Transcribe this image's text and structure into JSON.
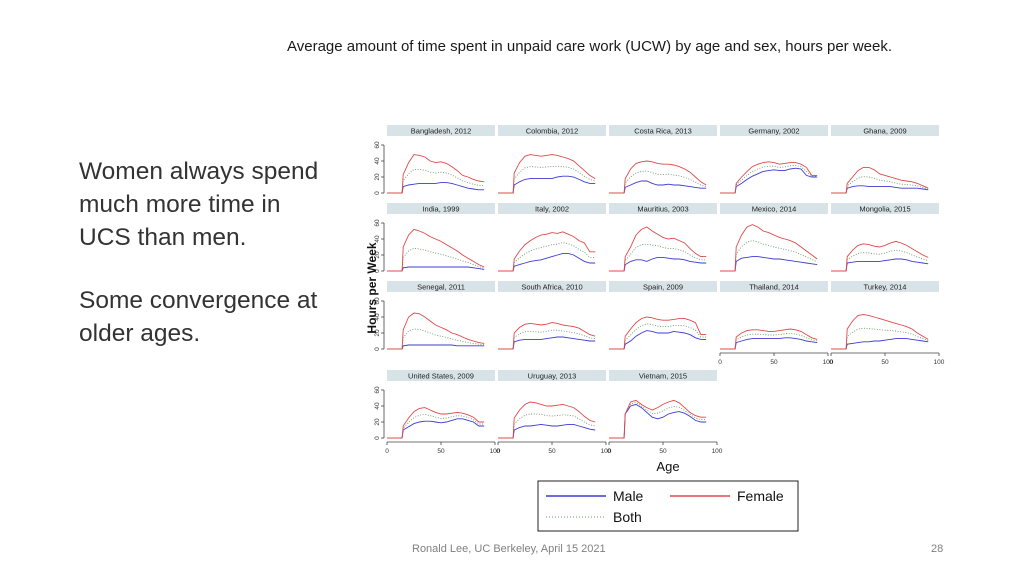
{
  "slide": {
    "title": "Average amount of time spent in unpaid care work (UCW) by age and sex, hours per week.",
    "bullets": [
      "Women always spend much more time in UCS than men.",
      "Some convergence at older ages."
    ],
    "footer": "Ronald Lee, UC Berkeley, April 15 2021",
    "page_number": "28"
  },
  "colors": {
    "male": "#3c3cd0",
    "female": "#e04848",
    "both": "#6a9a6a",
    "panel_header": "#d8e3e8",
    "axis": "#444444"
  },
  "chart_data": {
    "type": "line",
    "xlabel": "Age",
    "ylabel": "Hours per Week",
    "xlim": [
      0,
      100
    ],
    "ylim": [
      0,
      60
    ],
    "xticks": [
      0,
      50,
      100
    ],
    "yticks": [
      0,
      20,
      40,
      60
    ],
    "legend": {
      "placement": "bottom-center",
      "entries": [
        {
          "key": "male",
          "label": "Male"
        },
        {
          "key": "female",
          "label": "Female"
        },
        {
          "key": "both",
          "label": "Both"
        }
      ]
    },
    "ages": [
      0,
      14,
      15,
      20,
      25,
      30,
      35,
      40,
      45,
      50,
      55,
      60,
      65,
      70,
      75,
      80,
      85,
      90
    ],
    "panels": [
      {
        "name": "Bangladesh, 2012",
        "row": 0,
        "col": 0,
        "female": [
          0,
          0,
          23,
          38,
          48,
          47,
          45,
          40,
          38,
          39,
          37,
          33,
          28,
          22,
          20,
          17,
          15,
          14
        ],
        "male": [
          0,
          0,
          8,
          10,
          11,
          12,
          12,
          12,
          12,
          13,
          13,
          12,
          10,
          8,
          6,
          5,
          4,
          4
        ]
      },
      {
        "name": "Colombia, 2012",
        "row": 0,
        "col": 1,
        "female": [
          0,
          0,
          25,
          38,
          46,
          48,
          47,
          46,
          47,
          48,
          47,
          45,
          43,
          40,
          34,
          28,
          22,
          18
        ],
        "male": [
          0,
          0,
          10,
          14,
          17,
          18,
          18,
          18,
          18,
          18,
          20,
          21,
          21,
          20,
          17,
          14,
          12,
          12
        ]
      },
      {
        "name": "Costa Rica, 2013",
        "row": 0,
        "col": 2,
        "female": [
          0,
          0,
          18,
          30,
          37,
          39,
          40,
          39,
          37,
          36,
          36,
          35,
          33,
          30,
          26,
          20,
          14,
          10
        ],
        "male": [
          0,
          0,
          7,
          10,
          13,
          15,
          15,
          12,
          10,
          10,
          11,
          10,
          10,
          9,
          8,
          7,
          6,
          6
        ]
      },
      {
        "name": "Germany, 2002",
        "row": 0,
        "col": 3,
        "female": [
          0,
          0,
          12,
          20,
          27,
          33,
          36,
          38,
          39,
          38,
          36,
          37,
          38,
          38,
          36,
          32,
          22,
          22
        ],
        "male": [
          0,
          0,
          8,
          12,
          17,
          21,
          24,
          27,
          28,
          29,
          28,
          28,
          30,
          31,
          30,
          22,
          20,
          20
        ]
      },
      {
        "name": "Ghana, 2009",
        "row": 0,
        "col": 4,
        "female": [
          0,
          0,
          12,
          20,
          28,
          32,
          32,
          29,
          24,
          22,
          20,
          18,
          16,
          15,
          14,
          12,
          9,
          6
        ],
        "male": [
          0,
          0,
          6,
          8,
          9,
          9,
          8,
          8,
          8,
          8,
          8,
          7,
          6,
          6,
          6,
          6,
          5,
          4
        ]
      },
      {
        "name": "India, 1999",
        "row": 1,
        "col": 0,
        "female": [
          0,
          0,
          30,
          45,
          52,
          50,
          47,
          43,
          40,
          37,
          33,
          29,
          25,
          20,
          16,
          12,
          8,
          5
        ],
        "male": [
          0,
          0,
          4,
          5,
          5,
          5,
          5,
          5,
          5,
          5,
          5,
          5,
          5,
          5,
          5,
          4,
          3,
          2
        ]
      },
      {
        "name": "Italy, 2002",
        "row": 1,
        "col": 1,
        "female": [
          0,
          0,
          15,
          25,
          33,
          38,
          42,
          45,
          46,
          48,
          47,
          49,
          46,
          43,
          38,
          35,
          24,
          24
        ],
        "male": [
          0,
          0,
          6,
          8,
          10,
          12,
          13,
          14,
          16,
          18,
          20,
          22,
          22,
          20,
          16,
          12,
          10,
          10
        ]
      },
      {
        "name": "Mauritius, 2003",
        "row": 1,
        "col": 2,
        "female": [
          0,
          0,
          18,
          30,
          45,
          52,
          55,
          50,
          46,
          42,
          40,
          41,
          38,
          35,
          28,
          22,
          18,
          18
        ],
        "male": [
          0,
          0,
          8,
          12,
          14,
          14,
          12,
          15,
          17,
          17,
          16,
          15,
          15,
          14,
          12,
          11,
          10,
          10
        ]
      },
      {
        "name": "Mexico, 2014",
        "row": 1,
        "col": 3,
        "female": [
          0,
          0,
          30,
          45,
          55,
          58,
          55,
          50,
          48,
          45,
          42,
          40,
          38,
          35,
          30,
          25,
          20,
          15
        ],
        "male": [
          0,
          0,
          12,
          16,
          17,
          18,
          18,
          17,
          16,
          15,
          15,
          14,
          13,
          12,
          11,
          10,
          9,
          8
        ]
      },
      {
        "name": "Mongolia, 2015",
        "row": 1,
        "col": 4,
        "female": [
          0,
          0,
          18,
          26,
          32,
          34,
          33,
          31,
          30,
          32,
          35,
          37,
          35,
          32,
          28,
          24,
          20,
          17
        ],
        "male": [
          0,
          0,
          10,
          11,
          12,
          12,
          12,
          12,
          12,
          13,
          14,
          15,
          15,
          14,
          12,
          11,
          10,
          9
        ]
      },
      {
        "name": "Senegal, 2011",
        "row": 2,
        "col": 0,
        "female": [
          0,
          0,
          24,
          40,
          45,
          44,
          40,
          35,
          30,
          27,
          24,
          20,
          18,
          15,
          12,
          10,
          8,
          7
        ],
        "male": [
          0,
          0,
          4,
          5,
          5,
          5,
          5,
          5,
          5,
          5,
          5,
          5,
          4,
          4,
          4,
          4,
          4,
          4
        ]
      },
      {
        "name": "South Africa, 2010",
        "row": 2,
        "col": 1,
        "female": [
          0,
          0,
          20,
          27,
          31,
          32,
          31,
          30,
          31,
          33,
          32,
          30,
          29,
          28,
          26,
          22,
          18,
          16
        ],
        "male": [
          0,
          0,
          9,
          11,
          12,
          12,
          12,
          12,
          13,
          14,
          15,
          15,
          14,
          13,
          12,
          11,
          10,
          10
        ]
      },
      {
        "name": "Spain, 2009",
        "row": 2,
        "col": 2,
        "female": [
          0,
          0,
          16,
          25,
          33,
          38,
          40,
          39,
          37,
          36,
          36,
          37,
          38,
          38,
          36,
          33,
          18,
          18
        ],
        "male": [
          0,
          0,
          6,
          10,
          16,
          20,
          23,
          22,
          20,
          20,
          20,
          22,
          21,
          20,
          18,
          14,
          12,
          12
        ]
      },
      {
        "name": "Thailand, 2014",
        "row": 2,
        "col": 3,
        "female": [
          0,
          0,
          15,
          20,
          23,
          24,
          24,
          23,
          22,
          22,
          23,
          24,
          25,
          24,
          22,
          18,
          14,
          12
        ],
        "male": [
          0,
          0,
          8,
          10,
          12,
          13,
          13,
          13,
          13,
          13,
          13,
          14,
          14,
          13,
          12,
          10,
          9,
          8
        ]
      },
      {
        "name": "Turkey, 2014",
        "row": 2,
        "col": 4,
        "female": [
          0,
          0,
          25,
          35,
          42,
          43,
          42,
          40,
          38,
          36,
          34,
          32,
          30,
          28,
          25,
          20,
          16,
          12
        ],
        "male": [
          0,
          0,
          6,
          7,
          8,
          9,
          9,
          10,
          10,
          11,
          12,
          13,
          13,
          13,
          12,
          11,
          10,
          9
        ]
      },
      {
        "name": "United States, 2009",
        "row": 3,
        "col": 0,
        "female": [
          0,
          0,
          15,
          25,
          33,
          37,
          38,
          35,
          32,
          30,
          30,
          31,
          32,
          31,
          29,
          26,
          20,
          20
        ],
        "male": [
          0,
          0,
          10,
          14,
          18,
          20,
          21,
          21,
          20,
          19,
          20,
          22,
          24,
          24,
          22,
          20,
          15,
          15
        ]
      },
      {
        "name": "Uruguay, 2013",
        "row": 3,
        "col": 1,
        "female": [
          0,
          0,
          25,
          35,
          42,
          45,
          44,
          42,
          40,
          40,
          41,
          42,
          40,
          38,
          33,
          27,
          22,
          20
        ],
        "male": [
          0,
          0,
          10,
          13,
          15,
          15,
          16,
          17,
          16,
          15,
          15,
          16,
          17,
          17,
          15,
          13,
          11,
          10
        ]
      },
      {
        "name": "Vietnam, 2015",
        "row": 3,
        "col": 2,
        "female": [
          0,
          0,
          30,
          45,
          47,
          42,
          38,
          35,
          38,
          42,
          45,
          47,
          44,
          38,
          32,
          28,
          26,
          26
        ],
        "male": [
          0,
          0,
          30,
          40,
          42,
          38,
          32,
          26,
          24,
          26,
          30,
          32,
          33,
          31,
          27,
          22,
          20,
          20
        ]
      }
    ]
  }
}
